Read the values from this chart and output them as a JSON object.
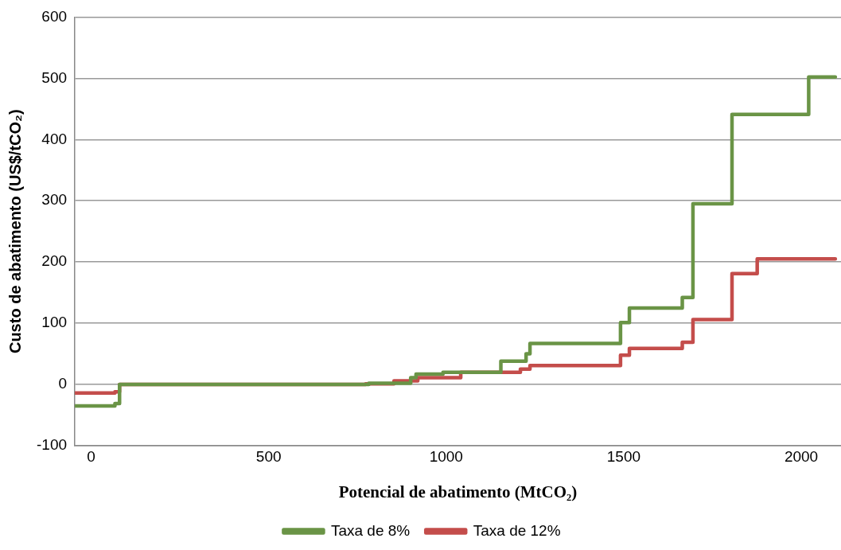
{
  "chart_data": {
    "type": "step",
    "xlabel": "Potencial de abatimento (MtCO₂)",
    "ylabel": "Custo de abatimento (US$/tCO₂)",
    "xlim": [
      -46,
      2112
    ],
    "xticks": [
      0,
      500,
      1000,
      1500,
      2000
    ],
    "ylim": [
      -100,
      600
    ],
    "yticks": [
      -100,
      0,
      100,
      200,
      300,
      400,
      500,
      600
    ],
    "grid": "y",
    "legend": "bottom",
    "series": [
      {
        "name": "Taxa de 8%",
        "color": "#6a9446",
        "x": [
          -46,
          67,
          80,
          782,
          900,
          915,
          991,
          1154,
          1225,
          1236,
          1491,
          1516,
          1665,
          1695,
          1805,
          2021,
          2096
        ],
        "values": [
          -35,
          -31,
          0,
          2,
          11,
          17,
          20,
          38,
          50,
          67,
          101,
          125,
          142,
          295,
          441,
          502,
          502
        ]
      },
      {
        "name": "Taxa de 12%",
        "color": "#c44d4b",
        "x": [
          -46,
          67,
          80,
          773,
          853,
          920,
          1041,
          1209,
          1236,
          1491,
          1516,
          1665,
          1695,
          1805,
          1876,
          2096
        ],
        "values": [
          -14,
          -12,
          0,
          1,
          6,
          11,
          20,
          25,
          31,
          48,
          59,
          69,
          106,
          181,
          205,
          205
        ]
      }
    ]
  }
}
